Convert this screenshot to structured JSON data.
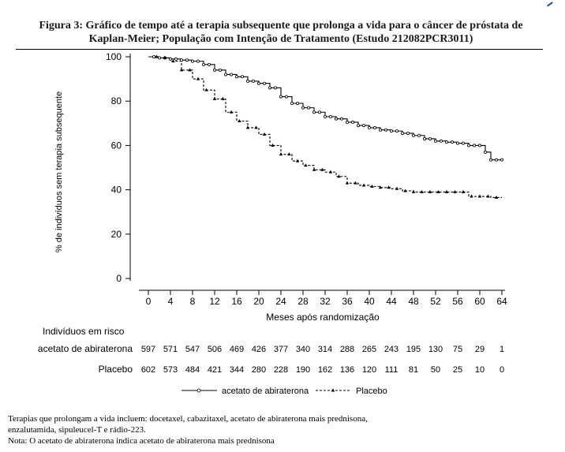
{
  "figure": {
    "title_line1": "Figura 3: Gráfico de tempo até a terapia subsequente que prolonga a vida para o câncer de próstata de",
    "title_line2": "Kaplan-Meier; População com Intenção de Tratamento (Estudo 212082PCR3011)"
  },
  "chart_data": {
    "type": "line",
    "xlabel": "Meses após randomização",
    "ylabel": "% de indivíduos sem terapia subsequente",
    "xlim": [
      0,
      64
    ],
    "ylim": [
      0,
      100
    ],
    "x_ticks": [
      0,
      4,
      8,
      12,
      16,
      20,
      24,
      28,
      32,
      36,
      40,
      44,
      48,
      52,
      56,
      60,
      64
    ],
    "y_ticks": [
      0,
      20,
      40,
      60,
      80,
      100
    ],
    "grid": false,
    "legend_position": "bottom",
    "series": [
      {
        "name": "acetato de abiraterona",
        "style": "solid",
        "marker": "circle",
        "color": "#000000",
        "x": [
          0,
          2,
          4,
          6,
          8,
          10,
          12,
          14,
          16,
          18,
          20,
          22,
          24,
          26,
          28,
          30,
          32,
          34,
          36,
          38,
          40,
          42,
          44,
          46,
          48,
          50,
          52,
          54,
          56,
          58,
          60,
          61,
          62,
          63,
          64
        ],
        "y": [
          100,
          99.5,
          99,
          98.5,
          98,
          96.5,
          94,
          92,
          91,
          89,
          88,
          86,
          82,
          79,
          77,
          75,
          73,
          72,
          70.5,
          69,
          68,
          67,
          66.5,
          65.5,
          64.5,
          63,
          62,
          61.5,
          61,
          60,
          60,
          57,
          53.5,
          53.5,
          53.5
        ]
      },
      {
        "name": "Placebo",
        "style": "dashed",
        "marker": "triangle",
        "color": "#000000",
        "x": [
          0,
          2,
          4,
          6,
          8,
          10,
          12,
          14,
          16,
          18,
          20,
          22,
          24,
          26,
          28,
          30,
          32,
          34,
          36,
          38,
          40,
          42,
          44,
          46,
          48,
          50,
          52,
          54,
          56,
          58,
          60,
          62,
          64
        ],
        "y": [
          100,
          99.5,
          98,
          94,
          90,
          85,
          81,
          75,
          71,
          68,
          65,
          60,
          56,
          53,
          51,
          49,
          48,
          46,
          43,
          42,
          41.5,
          41,
          40.5,
          39.5,
          39,
          39,
          39,
          39,
          39,
          37,
          37,
          36.5,
          36.5
        ]
      }
    ],
    "risk_table": {
      "header": "Indivíduos em risco",
      "rows": [
        {
          "label": "acetato de abiraterona",
          "values": [
            597,
            571,
            547,
            506,
            469,
            426,
            377,
            340,
            314,
            288,
            265,
            243,
            195,
            130,
            75,
            29,
            1
          ]
        },
        {
          "label": "Placebo",
          "values": [
            602,
            573,
            484,
            421,
            344,
            280,
            228,
            190,
            162,
            136,
            120,
            111,
            81,
            50,
            25,
            10,
            0
          ]
        }
      ]
    }
  },
  "notes": {
    "line1": "Terapias que prolongam a vida incluem: docetaxel, cabazitaxel, acetato de abiraterona mais prednisona,",
    "line2": "enzalutamida, sipuleucel-T e rádio-223.",
    "line3": "Nota: O acetato de abiraterona indica acetato de abiraterona mais prednisona"
  }
}
